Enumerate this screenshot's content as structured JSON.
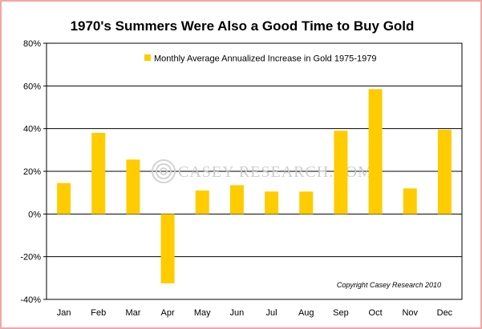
{
  "chart_data": {
    "type": "bar",
    "title": "1970's Summers Were Also a Good Time to Buy Gold",
    "categories": [
      "Jan",
      "Feb",
      "Mar",
      "Apr",
      "May",
      "Jun",
      "Jul",
      "Aug",
      "Sep",
      "Oct",
      "Nov",
      "Dec"
    ],
    "series": [
      {
        "name": "Monthly Average Annualized Increase in Gold 1975-1979",
        "values": [
          14.5,
          38,
          25.5,
          -32.5,
          11,
          13.5,
          10.5,
          10.5,
          39,
          58.5,
          12,
          39.5
        ],
        "color": "#ffcc00"
      }
    ],
    "yticks": [
      "80%",
      "60%",
      "40%",
      "20%",
      "0%",
      "-20%",
      "-40%"
    ],
    "ylim": [
      -40,
      80
    ],
    "xlabel": "",
    "ylabel": "",
    "grid": true,
    "legend": "top",
    "watermark": "CASEY RESEARCH.COM",
    "copyright": "Copyright Casey Research 2010"
  }
}
